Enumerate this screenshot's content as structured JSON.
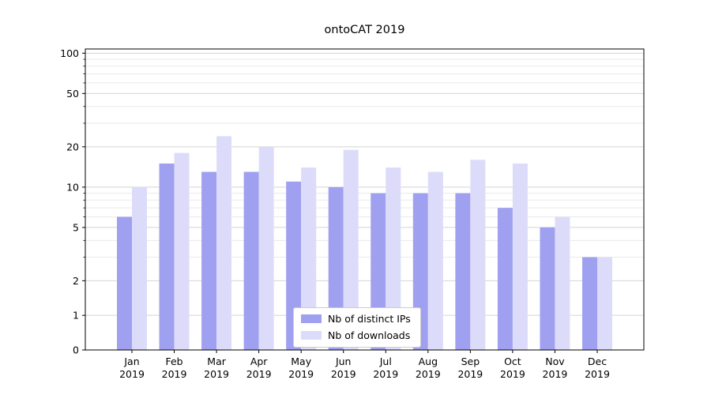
{
  "chart_data": {
    "type": "bar",
    "title": "ontoCAT 2019",
    "categories": [
      "Jan 2019",
      "Feb 2019",
      "Mar 2019",
      "Apr 2019",
      "May 2019",
      "Jun 2019",
      "Jul 2019",
      "Aug 2019",
      "Sep 2019",
      "Oct 2019",
      "Nov 2019",
      "Dec 2019"
    ],
    "series": [
      {
        "name": "Nb of distinct IPs",
        "color": "#a0a0f0",
        "values": [
          6,
          15,
          13,
          13,
          11,
          10,
          9,
          9,
          9,
          7,
          5,
          3
        ]
      },
      {
        "name": "Nb of downloads",
        "color": "#dcdcfa",
        "values": [
          10,
          18,
          24,
          20,
          14,
          19,
          14,
          13,
          16,
          15,
          6,
          3
        ]
      }
    ],
    "xlabel": "",
    "ylabel": "",
    "yscale": "symlog",
    "yticks": [
      0,
      1,
      2,
      5,
      10,
      20,
      50,
      100
    ],
    "minor_yticks": [
      3,
      4,
      6,
      7,
      8,
      9,
      30,
      40,
      60,
      70,
      80,
      90
    ],
    "ylim": [
      0,
      110
    ],
    "grid": "on",
    "legend_position": "lower center"
  },
  "colors": {
    "ips_bar": "#a0a0f0",
    "downloads_bar": "#dcdcfa",
    "grid_major": "#d4d4d4",
    "grid_minor": "#eaeaea",
    "axis": "#000000",
    "background": "#ffffff"
  }
}
